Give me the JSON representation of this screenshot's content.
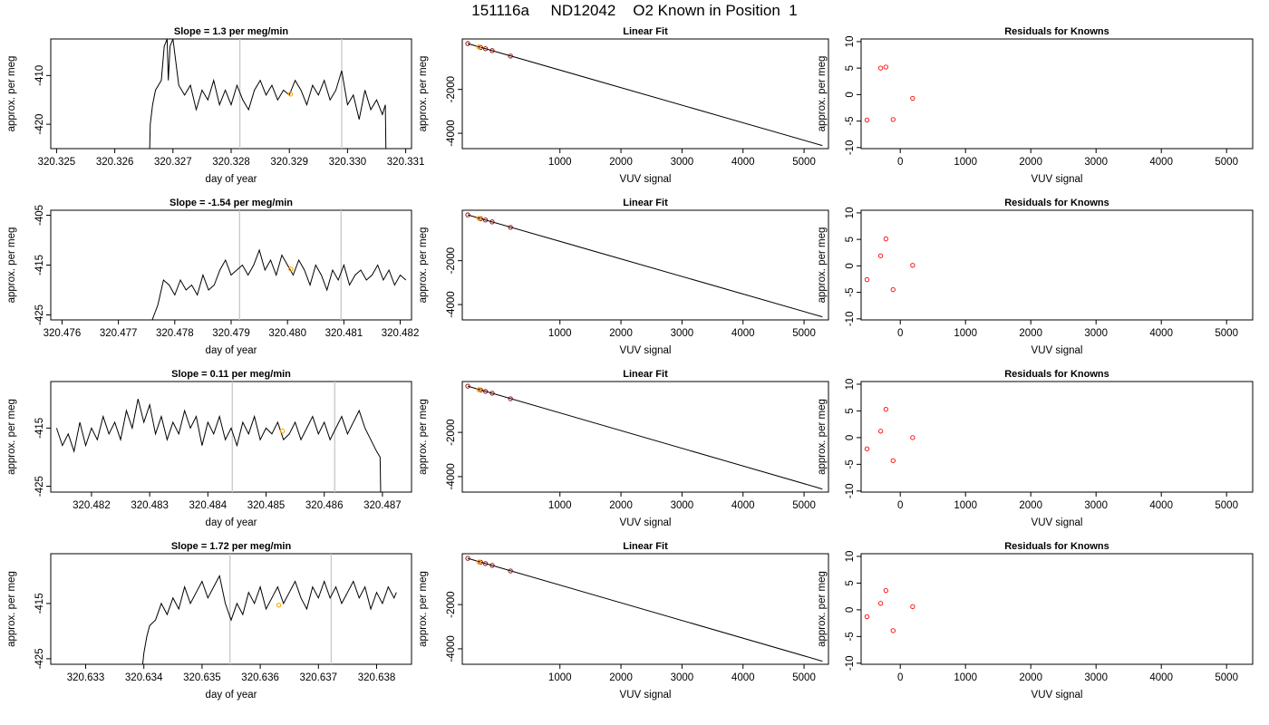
{
  "page_title": "151116a     ND12042    O2 Known in Position  1",
  "chart_data": [
    {
      "type": "line",
      "title": "Slope =  1.3  per meg/min",
      "xlabel": "day of year",
      "ylabel": "approx. per meg",
      "xlim": [
        320.3249,
        320.3311
      ],
      "ylim": [
        -425,
        -402.5
      ],
      "xticks": [
        "320.325",
        "320.326",
        "320.327",
        "320.328",
        "320.329",
        "320.330",
        "320.331"
      ],
      "yticks": [
        "-410",
        "-420"
      ],
      "vlines": [
        320.32815,
        320.3299
      ],
      "highlight_point": [
        320.32902,
        -413.8
      ],
      "series": [
        {
          "x": [
            320.3266,
            320.32661,
            320.32665,
            320.3267,
            320.3268,
            320.32685,
            320.3269,
            320.32692,
            320.32695,
            320.327,
            320.3271,
            320.3272,
            320.3273,
            320.3274,
            320.3275,
            320.3276,
            320.3277,
            320.3278,
            320.3279,
            320.328,
            320.3281,
            320.3282,
            320.3283,
            320.3284,
            320.3285,
            320.3286,
            320.3287,
            320.3288,
            320.3289,
            320.329,
            320.3291,
            320.3292,
            320.3293,
            320.3294,
            320.3295,
            320.3296,
            320.3297,
            320.3298,
            320.3299,
            320.33,
            320.3301,
            320.3302,
            320.3303,
            320.3304,
            320.3305,
            320.3306,
            320.33065,
            320.33066
          ],
          "values": [
            -425,
            -420,
            -416,
            -413,
            -411,
            -404,
            -402.5,
            -411,
            -404,
            -402.5,
            -412,
            -414,
            -412,
            -417,
            -413,
            -415,
            -411,
            -416,
            -413,
            -416,
            -412,
            -415,
            -417,
            -413,
            -411,
            -414,
            -412,
            -415,
            -413,
            -414,
            -411,
            -413,
            -416,
            -412,
            -414,
            -411,
            -415,
            -413,
            -409,
            -416,
            -414,
            -419,
            -413,
            -417,
            -415,
            -418,
            -416,
            -425
          ]
        }
      ]
    },
    {
      "type": "line",
      "title": "Slope =  -1.54  per meg/min",
      "xlabel": "day of year",
      "ylabel": "approx. per meg",
      "xlim": [
        320.4758,
        320.4822
      ],
      "ylim": [
        -426,
        -404
      ],
      "xticks": [
        "320.476",
        "320.477",
        "320.478",
        "320.479",
        "320.480",
        "320.481",
        "320.482"
      ],
      "yticks": [
        "-405",
        "-415",
        "-425"
      ],
      "vlines": [
        320.47915,
        320.48095
      ],
      "highlight_point": [
        320.48006,
        -415.8
      ],
      "series": [
        {
          "x": [
            320.4776,
            320.4777,
            320.4778,
            320.4779,
            320.478,
            320.4781,
            320.4782,
            320.4783,
            320.4784,
            320.4785,
            320.4786,
            320.4787,
            320.4788,
            320.4789,
            320.479,
            320.4791,
            320.4792,
            320.4793,
            320.4794,
            320.4795,
            320.4796,
            320.4797,
            320.4798,
            320.4799,
            320.48,
            320.4801,
            320.4802,
            320.4803,
            320.4804,
            320.4805,
            320.4806,
            320.4807,
            320.4808,
            320.4809,
            320.481,
            320.4811,
            320.4812,
            320.4813,
            320.4814,
            320.4815,
            320.4816,
            320.4817,
            320.4818,
            320.4819,
            320.482,
            320.4821
          ],
          "values": [
            -426,
            -423,
            -418,
            -419,
            -421,
            -418,
            -420,
            -419,
            -421,
            -417,
            -420,
            -419,
            -416,
            -414,
            -417,
            -416,
            -415,
            -417,
            -415,
            -412,
            -416,
            -414,
            -417,
            -413,
            -415,
            -417,
            -414,
            -416,
            -419,
            -415,
            -417,
            -420,
            -416,
            -418,
            -415,
            -419,
            -417,
            -416,
            -418,
            -417,
            -415,
            -418,
            -416,
            -419,
            -417,
            -418
          ]
        }
      ]
    },
    {
      "type": "line",
      "title": "Slope =  0.11  per meg/min",
      "xlabel": "day of year",
      "ylabel": "approx. per meg",
      "xlim": [
        320.4813,
        320.4875
      ],
      "ylim": [
        -426,
        -407
      ],
      "xticks": [
        "320.482",
        "320.483",
        "320.484",
        "320.485",
        "320.486",
        "320.487"
      ],
      "yticks": [
        "-415",
        "-425"
      ],
      "vlines": [
        320.48442,
        320.48618
      ],
      "highlight_point": [
        320.48528,
        -415.5
      ],
      "series": [
        {
          "x": [
            320.4814,
            320.4815,
            320.4816,
            320.4817,
            320.4818,
            320.4819,
            320.482,
            320.4821,
            320.4822,
            320.4823,
            320.4824,
            320.4825,
            320.4826,
            320.4827,
            320.4828,
            320.4829,
            320.483,
            320.4831,
            320.4832,
            320.4833,
            320.4834,
            320.4835,
            320.4836,
            320.4837,
            320.4838,
            320.4839,
            320.484,
            320.4841,
            320.4842,
            320.4843,
            320.4844,
            320.4845,
            320.4846,
            320.4847,
            320.4848,
            320.4849,
            320.485,
            320.4851,
            320.4852,
            320.4853,
            320.4854,
            320.4855,
            320.4856,
            320.4857,
            320.4858,
            320.4859,
            320.486,
            320.4861,
            320.4862,
            320.4863,
            320.4864,
            320.4865,
            320.4866,
            320.4867,
            320.4868,
            320.4869,
            320.48696,
            320.48697
          ],
          "values": [
            -415,
            -418,
            -416,
            -419,
            -414,
            -418,
            -415,
            -417,
            -413,
            -416,
            -414,
            -417,
            -412,
            -415,
            -410,
            -414,
            -411,
            -416,
            -413,
            -417,
            -414,
            -416,
            -412,
            -415,
            -413,
            -418,
            -414,
            -416,
            -413,
            -417,
            -415,
            -418,
            -414,
            -416,
            -413,
            -417,
            -415,
            -416,
            -414,
            -417,
            -416,
            -414,
            -417,
            -415,
            -413,
            -416,
            -414,
            -417,
            -415,
            -413,
            -416,
            -414,
            -412,
            -415,
            -417,
            -419,
            -420,
            -426
          ]
        }
      ]
    },
    {
      "type": "line",
      "title": "Slope =  1.72  per meg/min",
      "xlabel": "day of year",
      "ylabel": "approx. per meg",
      "xlim": [
        320.6324,
        320.6386
      ],
      "ylim": [
        -426,
        -406
      ],
      "xticks": [
        "320.633",
        "320.634",
        "320.635",
        "320.636",
        "320.637",
        "320.638"
      ],
      "yticks": [
        "-415",
        "-425"
      ],
      "vlines": [
        320.63548,
        320.63722
      ],
      "highlight_point": [
        320.63632,
        -415.3
      ],
      "series": [
        {
          "x": [
            320.63398,
            320.634,
            320.63405,
            320.6341,
            320.6342,
            320.6343,
            320.6344,
            320.6345,
            320.6346,
            320.6347,
            320.6348,
            320.6349,
            320.635,
            320.6351,
            320.6352,
            320.6353,
            320.6354,
            320.6355,
            320.6356,
            320.6357,
            320.6358,
            320.6359,
            320.636,
            320.6361,
            320.6362,
            320.6363,
            320.6364,
            320.6365,
            320.6366,
            320.6367,
            320.6368,
            320.6369,
            320.637,
            320.6371,
            320.6372,
            320.6373,
            320.6374,
            320.6375,
            320.6376,
            320.6377,
            320.6378,
            320.6379,
            320.638,
            320.6381,
            320.6382,
            320.6383,
            320.63834
          ],
          "values": [
            -426,
            -424,
            -421,
            -419,
            -418,
            -415,
            -417,
            -414,
            -416,
            -412,
            -415,
            -413,
            -411,
            -414,
            -412,
            -410,
            -415,
            -418,
            -415,
            -417,
            -413,
            -415,
            -412,
            -416,
            -414,
            -412,
            -415,
            -413,
            -411,
            -414,
            -416,
            -412,
            -414,
            -411,
            -414,
            -412,
            -415,
            -413,
            -411,
            -414,
            -412,
            -416,
            -413,
            -415,
            -412,
            -414,
            -413
          ]
        }
      ]
    },
    {
      "type": "scatter",
      "title": "Linear Fit",
      "xlabel": "VUV signal",
      "ylabel": "approx. per meg",
      "xlim": [
        -600,
        5400
      ],
      "ylim": [
        -4700,
        300
      ],
      "xticks": [
        "1000",
        "2000",
        "3000",
        "4000",
        "5000"
      ],
      "yticks": [
        "-2000",
        "-4000"
      ],
      "fit_line": [
        [
          -510,
          90
        ],
        [
          5300,
          -4560
        ]
      ],
      "points": [
        [
          -510,
          90
        ],
        [
          -300,
          -85
        ],
        [
          -220,
          -145
        ],
        [
          -110,
          -230
        ],
        [
          190,
          -480
        ]
      ],
      "highlight_point": [
        -330,
        -65
      ]
    },
    {
      "type": "scatter",
      "title": "Residuals for Knowns",
      "xlabel": "VUV signal",
      "ylabel": "approx. per meg",
      "xlim": [
        -600,
        5400
      ],
      "ylim": [
        -10.2,
        10.5
      ],
      "xticks": [
        "0",
        "1000",
        "2000",
        "3000",
        "4000",
        "5000"
      ],
      "yticks": [
        "10",
        "5",
        "0",
        "-5",
        "-10"
      ],
      "points": [
        [
          -510,
          -4.8
        ],
        [
          -300,
          5.0
        ],
        [
          -220,
          5.2
        ],
        [
          -110,
          -4.7
        ],
        [
          190,
          -0.7
        ]
      ]
    },
    {
      "type": "scatter",
      "title": "Linear Fit",
      "xlabel": "VUV signal",
      "ylabel": "approx. per meg",
      "xlim": [
        -600,
        5400
      ],
      "ylim": [
        -4700,
        300
      ],
      "xticks": [
        "1000",
        "2000",
        "3000",
        "4000",
        "5000"
      ],
      "yticks": [
        "-2000",
        "-4000"
      ],
      "fit_line": [
        [
          -510,
          90
        ],
        [
          5300,
          -4560
        ]
      ],
      "points": [
        [
          -510,
          90
        ],
        [
          -300,
          -85
        ],
        [
          -220,
          -145
        ],
        [
          -110,
          -230
        ],
        [
          190,
          -480
        ]
      ],
      "highlight_point": [
        -330,
        -70
      ]
    },
    {
      "type": "scatter",
      "title": "Residuals for Knowns",
      "xlabel": "VUV signal",
      "ylabel": "approx. per meg",
      "xlim": [
        -600,
        5400
      ],
      "ylim": [
        -10.2,
        10.5
      ],
      "xticks": [
        "0",
        "1000",
        "2000",
        "3000",
        "4000",
        "5000"
      ],
      "yticks": [
        "10",
        "5",
        "0",
        "-5",
        "-10"
      ],
      "points": [
        [
          -510,
          -2.6
        ],
        [
          -300,
          1.9
        ],
        [
          -220,
          5.1
        ],
        [
          -110,
          -4.5
        ],
        [
          190,
          0.1
        ]
      ]
    },
    {
      "type": "scatter",
      "title": "Linear Fit",
      "xlabel": "VUV signal",
      "ylabel": "approx. per meg",
      "xlim": [
        -600,
        5400
      ],
      "ylim": [
        -4700,
        300
      ],
      "xticks": [
        "1000",
        "2000",
        "3000",
        "4000",
        "5000"
      ],
      "yticks": [
        "-2000",
        "-4000"
      ],
      "fit_line": [
        [
          -510,
          90
        ],
        [
          5300,
          -4560
        ]
      ],
      "points": [
        [
          -510,
          90
        ],
        [
          -300,
          -85
        ],
        [
          -220,
          -145
        ],
        [
          -110,
          -230
        ],
        [
          190,
          -480
        ]
      ],
      "highlight_point": [
        -330,
        -70
      ]
    },
    {
      "type": "scatter",
      "title": "Residuals for Knowns",
      "xlabel": "VUV signal",
      "ylabel": "approx. per meg",
      "xlim": [
        -600,
        5400
      ],
      "ylim": [
        -10.2,
        10.5
      ],
      "xticks": [
        "0",
        "1000",
        "2000",
        "3000",
        "4000",
        "5000"
      ],
      "yticks": [
        "10",
        "5",
        "0",
        "-5",
        "-10"
      ],
      "points": [
        [
          -510,
          -2.1
        ],
        [
          -300,
          1.2
        ],
        [
          -220,
          5.3
        ],
        [
          -110,
          -4.3
        ],
        [
          190,
          0.0
        ]
      ]
    },
    {
      "type": "scatter",
      "title": "Linear Fit",
      "xlabel": "VUV signal",
      "ylabel": "approx. per meg",
      "xlim": [
        -600,
        5400
      ],
      "ylim": [
        -4700,
        300
      ],
      "xticks": [
        "1000",
        "2000",
        "3000",
        "4000",
        "5000"
      ],
      "yticks": [
        "-2000",
        "-4000"
      ],
      "fit_line": [
        [
          -510,
          90
        ],
        [
          5300,
          -4560
        ]
      ],
      "points": [
        [
          -510,
          90
        ],
        [
          -300,
          -85
        ],
        [
          -220,
          -145
        ],
        [
          -110,
          -230
        ],
        [
          190,
          -480
        ]
      ],
      "highlight_point": [
        -330,
        -75
      ]
    },
    {
      "type": "scatter",
      "title": "Residuals for Knowns",
      "xlabel": "VUV signal",
      "ylabel": "approx. per meg",
      "xlim": [
        -600,
        5400
      ],
      "ylim": [
        -10.2,
        10.5
      ],
      "xticks": [
        "0",
        "1000",
        "2000",
        "3000",
        "4000",
        "5000"
      ],
      "yticks": [
        "10",
        "5",
        "0",
        "-5",
        "-10"
      ],
      "points": [
        [
          -510,
          -1.3
        ],
        [
          -300,
          1.2
        ],
        [
          -220,
          3.6
        ],
        [
          -110,
          -3.9
        ],
        [
          190,
          0.6
        ]
      ]
    }
  ],
  "colors": {
    "line": "#000000",
    "vline": "#c8c8c8",
    "highlight": "#ffa500",
    "points": "#ff0000",
    "fit_points": "#8b0000"
  }
}
